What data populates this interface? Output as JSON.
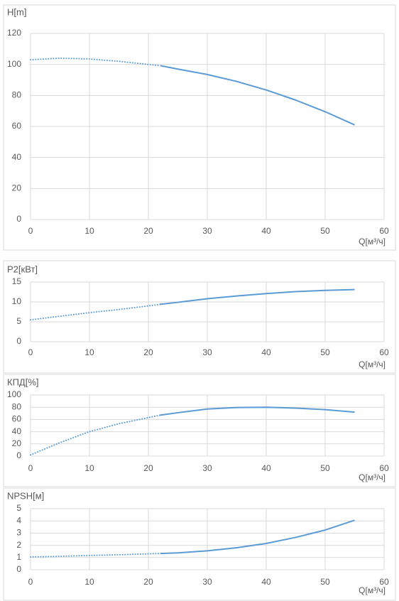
{
  "chart_data": [
    {
      "type": "line",
      "ylabel": "H[m]",
      "xlabel": "Q[м³/ч]",
      "xlim": [
        0,
        60
      ],
      "xticks": [
        0,
        10,
        20,
        30,
        40,
        50,
        60
      ],
      "ylim": [
        0,
        120
      ],
      "yticks": [
        0,
        20,
        40,
        60,
        80,
        100,
        120
      ],
      "grid": true,
      "series": [
        {
          "color": "#5b9bd5",
          "dash": "dotted",
          "x": [
            0,
            5,
            10,
            15,
            20,
            22
          ],
          "values": [
            103,
            104,
            103.5,
            102,
            100,
            99.2
          ]
        },
        {
          "color": "#5b9bd5",
          "dash": "solid",
          "x": [
            22,
            25,
            30,
            35,
            40,
            45,
            50,
            55
          ],
          "values": [
            99.2,
            97,
            93.5,
            89,
            83.5,
            77,
            69.5,
            61
          ]
        }
      ]
    },
    {
      "type": "line",
      "ylabel": "P2[кВт]",
      "xlabel": "Q[м³/ч]",
      "xlim": [
        0,
        60
      ],
      "xticks": [
        0,
        10,
        20,
        30,
        40,
        50,
        60
      ],
      "ylim": [
        0,
        15
      ],
      "yticks": [
        0,
        5,
        10,
        15
      ],
      "grid": true,
      "series": [
        {
          "color": "#5b9bd5",
          "dash": "dotted",
          "x": [
            0,
            5,
            10,
            15,
            20,
            22
          ],
          "values": [
            5.5,
            6.4,
            7.3,
            8.1,
            9,
            9.4
          ]
        },
        {
          "color": "#5b9bd5",
          "dash": "solid",
          "x": [
            22,
            25,
            30,
            35,
            40,
            45,
            50,
            55
          ],
          "values": [
            9.4,
            9.9,
            10.8,
            11.5,
            12.1,
            12.6,
            12.9,
            13.1
          ]
        }
      ]
    },
    {
      "type": "line",
      "ylabel": "КПД[%]",
      "xlabel": "Q[м³/ч]",
      "xlim": [
        0,
        60
      ],
      "xticks": [
        0,
        10,
        20,
        30,
        40,
        50,
        60
      ],
      "ylim": [
        0,
        100
      ],
      "yticks": [
        0,
        20,
        40,
        60,
        80,
        100
      ],
      "grid": true,
      "series": [
        {
          "color": "#5b9bd5",
          "dash": "dotted",
          "x": [
            0,
            5,
            10,
            15,
            20,
            22
          ],
          "values": [
            2,
            22,
            40,
            53,
            63,
            67
          ]
        },
        {
          "color": "#5b9bd5",
          "dash": "solid",
          "x": [
            22,
            25,
            30,
            35,
            40,
            45,
            50,
            55
          ],
          "values": [
            67,
            71,
            77,
            79.5,
            80,
            78.5,
            76,
            72
          ]
        }
      ]
    },
    {
      "type": "line",
      "ylabel": "NPSH[м]",
      "xlabel": "Q[м³/ч]",
      "xlim": [
        0,
        60
      ],
      "xticks": [
        0,
        10,
        20,
        30,
        40,
        50,
        60
      ],
      "ylim": [
        0,
        5
      ],
      "yticks": [
        0,
        1,
        2,
        3,
        4,
        5
      ],
      "grid": true,
      "series": [
        {
          "color": "#5b9bd5",
          "dash": "dotted",
          "x": [
            0,
            5,
            10,
            15,
            20,
            22
          ],
          "values": [
            1.05,
            1.1,
            1.17,
            1.23,
            1.3,
            1.33
          ]
        },
        {
          "color": "#5b9bd5",
          "dash": "solid",
          "x": [
            22,
            25,
            30,
            35,
            40,
            45,
            50,
            55
          ],
          "values": [
            1.33,
            1.38,
            1.55,
            1.8,
            2.15,
            2.65,
            3.25,
            4.05
          ]
        }
      ]
    }
  ]
}
